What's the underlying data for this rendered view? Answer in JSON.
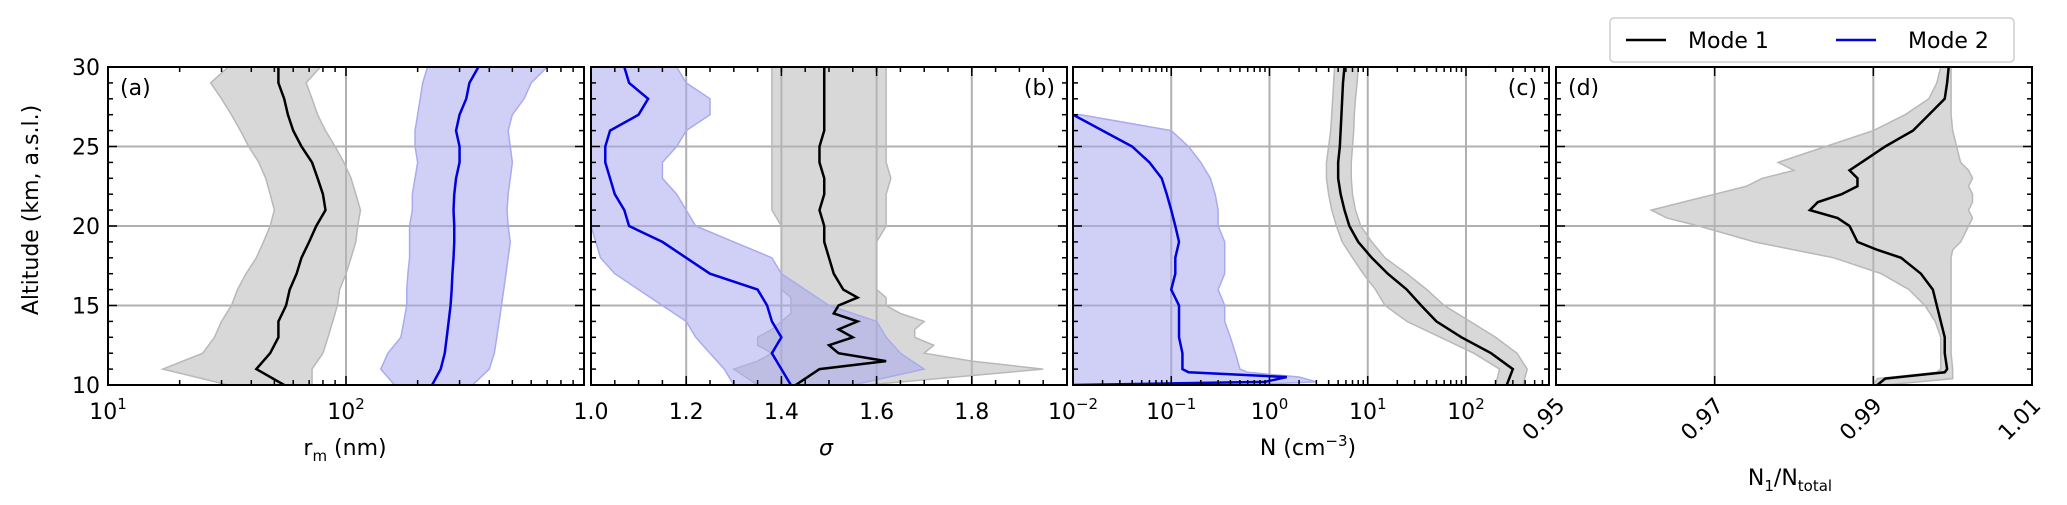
{
  "legend": {
    "placement": "top-right",
    "entries": [
      {
        "label": "Mode 1",
        "color": "#000000"
      },
      {
        "label": "Mode 2",
        "color": "#0000dd"
      }
    ]
  },
  "colors": {
    "mode1_band": "#b8b8b8",
    "mode2_band": "#aaaaee",
    "grid": "#b0b0b0"
  },
  "chart_data": [
    {
      "type": "line",
      "panel_label": "(a)",
      "xlabel_main": "r",
      "xlabel_sub": "m",
      "xlabel_rest": " (nm)",
      "ylabel": "Altitude (km, a.s.l.)",
      "xscale": "log",
      "xlim": [
        10,
        1000
      ],
      "ylim": [
        10,
        30
      ],
      "xticks": [
        {
          "v": 10,
          "b": "10",
          "e": "1"
        },
        {
          "v": 100,
          "b": "10",
          "e": "2"
        }
      ],
      "yticks": [
        "10",
        "15",
        "20",
        "25",
        "30"
      ],
      "grid": true,
      "series": [
        {
          "name": "Mode 1",
          "color": "#000000",
          "band_color": "#b8b8b8",
          "y": [
            10,
            11,
            12,
            13,
            14,
            15,
            16,
            17,
            18,
            19,
            20,
            21,
            22,
            23,
            24,
            25,
            26,
            27,
            28,
            29,
            30
          ],
          "x": [
            55,
            42,
            48,
            52,
            52,
            56,
            58,
            62,
            65,
            70,
            75,
            82,
            80,
            76,
            72,
            65,
            60,
            57,
            55,
            52,
            52
          ],
          "x_low": [
            32,
            17,
            25,
            28,
            30,
            33,
            35,
            38,
            42,
            45,
            48,
            50,
            48,
            46,
            43,
            39,
            36,
            33,
            30,
            27,
            32
          ],
          "x_high": [
            72,
            72,
            80,
            84,
            88,
            92,
            94,
            100,
            105,
            110,
            112,
            115,
            110,
            105,
            98,
            90,
            82,
            76,
            72,
            68,
            78
          ]
        },
        {
          "name": "Mode 2",
          "color": "#0000dd",
          "band_color": "#aaaaee",
          "y": [
            10,
            11,
            12,
            13,
            14,
            15,
            16,
            17,
            18,
            19,
            20,
            21,
            22,
            23,
            24,
            25,
            26,
            27,
            28,
            29,
            30
          ],
          "x": [
            230,
            250,
            260,
            265,
            270,
            275,
            278,
            280,
            283,
            285,
            285,
            283,
            285,
            290,
            300,
            300,
            290,
            300,
            320,
            330,
            360
          ],
          "x_low": [
            160,
            140,
            150,
            170,
            175,
            180,
            180,
            182,
            185,
            185,
            185,
            190,
            190,
            195,
            200,
            195,
            195,
            200,
            205,
            210,
            220
          ],
          "x_high": [
            340,
            400,
            420,
            430,
            440,
            450,
            460,
            470,
            480,
            490,
            480,
            475,
            480,
            490,
            500,
            490,
            480,
            500,
            560,
            600,
            700
          ]
        }
      ]
    },
    {
      "type": "line",
      "panel_label": "(b)",
      "xlabel": "σ",
      "xscale": "linear",
      "xlim": [
        1.0,
        2.0
      ],
      "ylim": [
        10,
        30
      ],
      "xticks": [
        "1.0",
        "1.2",
        "1.4",
        "1.6",
        "1.8"
      ],
      "grid": true,
      "series": [
        {
          "name": "Mode 1",
          "color": "#000000",
          "band_color": "#b8b8b8",
          "y": [
            10,
            11,
            11.5,
            12,
            12.5,
            13,
            13.5,
            14,
            14.5,
            15,
            15.5,
            16,
            17,
            18,
            19,
            20,
            21,
            22,
            23,
            24,
            25,
            26,
            27,
            28,
            29,
            30
          ],
          "x": [
            1.43,
            1.48,
            1.62,
            1.52,
            1.5,
            1.55,
            1.52,
            1.56,
            1.51,
            1.52,
            1.56,
            1.53,
            1.51,
            1.5,
            1.49,
            1.49,
            1.48,
            1.49,
            1.49,
            1.48,
            1.48,
            1.49,
            1.49,
            1.49,
            1.49,
            1.49
          ],
          "x_low": [
            1.35,
            1.3,
            1.35,
            1.38,
            1.35,
            1.35,
            1.38,
            1.4,
            1.42,
            1.42,
            1.42,
            1.4,
            1.4,
            1.4,
            1.4,
            1.4,
            1.38,
            1.38,
            1.38,
            1.38,
            1.38,
            1.38,
            1.38,
            1.38,
            1.38,
            1.38
          ],
          "x_high": [
            1.58,
            1.95,
            1.8,
            1.7,
            1.72,
            1.68,
            1.68,
            1.7,
            1.65,
            1.62,
            1.62,
            1.6,
            1.6,
            1.6,
            1.6,
            1.62,
            1.62,
            1.62,
            1.63,
            1.62,
            1.62,
            1.62,
            1.62,
            1.62,
            1.62,
            1.62
          ]
        },
        {
          "name": "Mode 2",
          "color": "#0000dd",
          "band_color": "#aaaaee",
          "y": [
            10,
            11,
            12,
            13,
            14,
            15,
            16,
            17,
            18,
            19,
            20,
            21,
            22,
            23,
            24,
            25,
            26,
            27,
            28,
            29,
            30
          ],
          "x": [
            1.42,
            1.4,
            1.38,
            1.4,
            1.38,
            1.37,
            1.35,
            1.25,
            1.2,
            1.15,
            1.08,
            1.07,
            1.05,
            1.04,
            1.03,
            1.03,
            1.04,
            1.1,
            1.12,
            1.08,
            1.07
          ],
          "x_low": [
            1.3,
            1.28,
            1.25,
            1.22,
            1.2,
            1.15,
            1.1,
            1.05,
            1.02,
            1.01,
            1.0,
            1.0,
            1.0,
            1.0,
            1.0,
            1.0,
            1.0,
            1.0,
            1.0,
            1.0,
            1.0
          ],
          "x_high": [
            1.55,
            1.7,
            1.65,
            1.62,
            1.6,
            1.5,
            1.45,
            1.4,
            1.38,
            1.3,
            1.22,
            1.2,
            1.18,
            1.15,
            1.15,
            1.18,
            1.2,
            1.25,
            1.25,
            1.2,
            1.18
          ]
        }
      ]
    },
    {
      "type": "line",
      "panel_label": "(c)",
      "xlabel_main": "N (cm",
      "xlabel_sup": "−3",
      "xlabel_rest": ")",
      "xscale": "log",
      "xlim": [
        0.01,
        700
      ],
      "ylim": [
        10,
        30
      ],
      "xticks": [
        {
          "v": 0.01,
          "b": "10",
          "e": "−2"
        },
        {
          "v": 0.1,
          "b": "10",
          "e": "−1"
        },
        {
          "v": 1,
          "b": "10",
          "e": "0"
        },
        {
          "v": 10,
          "b": "10",
          "e": "1"
        },
        {
          "v": 100,
          "b": "10",
          "e": "2"
        }
      ],
      "grid": true,
      "series": [
        {
          "name": "Mode 1",
          "color": "#000000",
          "band_color": "#b8b8b8",
          "y": [
            10,
            11,
            12,
            13,
            14,
            15,
            16,
            17,
            18,
            19,
            20,
            21,
            22,
            23,
            24,
            25,
            26,
            27,
            28,
            29,
            30
          ],
          "x": [
            260,
            300,
            180,
            90,
            50,
            35,
            25,
            16,
            11,
            8,
            6.5,
            5.8,
            5.3,
            5.0,
            5.0,
            5.2,
            5.3,
            5.4,
            5.5,
            5.6,
            5.8
          ],
          "x_low": [
            200,
            220,
            120,
            55,
            25,
            15,
            12,
            9,
            7,
            5.5,
            4.8,
            4.3,
            4.0,
            3.8,
            3.8,
            4.0,
            4.2,
            4.3,
            4.4,
            4.5,
            4.6
          ],
          "x_high": [
            380,
            420,
            330,
            200,
            110,
            60,
            40,
            25,
            15,
            11,
            8.5,
            7.5,
            7.0,
            6.8,
            6.8,
            7.0,
            7.2,
            7.3,
            7.5,
            7.8,
            8.0
          ]
        },
        {
          "name": "Mode 2",
          "color": "#0000dd",
          "band_color": "#aaaaee",
          "y": [
            10,
            10.2,
            10.5,
            10.8,
            11,
            12,
            13,
            14,
            15,
            16,
            17,
            18,
            19,
            20,
            21,
            22,
            23,
            24,
            25,
            26,
            27
          ],
          "x": [
            0.01,
            0.9,
            1.5,
            0.15,
            0.13,
            0.13,
            0.12,
            0.12,
            0.12,
            0.1,
            0.11,
            0.11,
            0.12,
            0.11,
            0.1,
            0.09,
            0.08,
            0.06,
            0.04,
            0.02,
            0.01
          ],
          "x_low": [
            0.01,
            0.01,
            0.01,
            0.01,
            0.01,
            0.01,
            0.01,
            0.01,
            0.01,
            0.01,
            0.01,
            0.01,
            0.01,
            0.01,
            0.01,
            0.01,
            0.01,
            0.01,
            0.01,
            0.01,
            0.01
          ],
          "x_high": [
            0.5,
            3.0,
            2.0,
            0.6,
            0.5,
            0.45,
            0.4,
            0.35,
            0.35,
            0.3,
            0.35,
            0.35,
            0.35,
            0.3,
            0.3,
            0.28,
            0.25,
            0.2,
            0.15,
            0.1,
            0.012
          ]
        }
      ]
    },
    {
      "type": "line",
      "panel_label": "(d)",
      "xlabel_main": "N",
      "xlabel_sub1": "1",
      "xlabel_mid": "/N",
      "xlabel_sub2": "total",
      "xscale": "linear",
      "xlim": [
        0.95,
        1.01
      ],
      "ylim": [
        10,
        30
      ],
      "xticks": [
        "0.95",
        "0.97",
        "0.99",
        "1.01"
      ],
      "grid": true,
      "series": [
        {
          "name": "Mode 1",
          "color": "#000000",
          "band_color": "#b8b8b8",
          "y": [
            10,
            10.4,
            10.8,
            11,
            12,
            13,
            14,
            15,
            16,
            17,
            18,
            18.5,
            19,
            20,
            20.5,
            21,
            21.5,
            22,
            22.5,
            23,
            23.5,
            24,
            25,
            26,
            27,
            28,
            29,
            30
          ],
          "x": [
            0.9905,
            0.9915,
            0.999,
            0.9993,
            0.999,
            0.999,
            0.9985,
            0.998,
            0.9975,
            0.996,
            0.9935,
            0.9905,
            0.988,
            0.987,
            0.9855,
            0.982,
            0.983,
            0.986,
            0.988,
            0.988,
            0.987,
            0.9885,
            0.9915,
            0.995,
            0.997,
            0.999,
            0.9993,
            0.9995
          ],
          "x_low": [
            0.99,
            0.9905,
            0.998,
            0.9985,
            0.9985,
            0.9985,
            0.9978,
            0.9965,
            0.9945,
            0.991,
            0.985,
            0.98,
            0.975,
            0.968,
            0.964,
            0.962,
            0.966,
            0.97,
            0.974,
            0.976,
            0.98,
            0.978,
            0.984,
            0.99,
            0.994,
            0.997,
            0.998,
            0.9985
          ],
          "x_high": [
            0.9915,
            1.0,
            1.0,
            1.0,
            0.9998,
            0.9998,
            0.9998,
            0.9998,
            0.9998,
            0.9998,
            0.9998,
            1.0,
            1.001,
            1.002,
            1.0025,
            1.002,
            1.0025,
            1.0025,
            1.002,
            1.0025,
            1.002,
            1.001,
            1.0005,
            1.0,
            0.9998,
            0.9998,
            0.9998,
            0.9998
          ]
        }
      ]
    }
  ]
}
